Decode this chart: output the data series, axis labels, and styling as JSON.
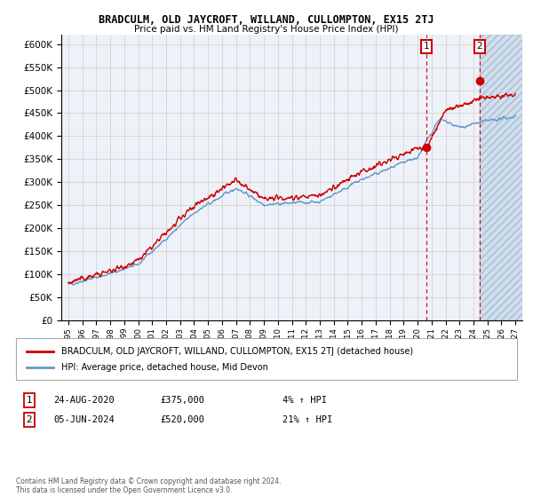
{
  "title": "BRADCULM, OLD JAYCROFT, WILLAND, CULLOMPTON, EX15 2TJ",
  "subtitle": "Price paid vs. HM Land Registry's House Price Index (HPI)",
  "legend_line1": "BRADCULM, OLD JAYCROFT, WILLAND, CULLOMPTON, EX15 2TJ (detached house)",
  "legend_line2": "HPI: Average price, detached house, Mid Devon",
  "annotation1_date": "24-AUG-2020",
  "annotation1_price": "£375,000",
  "annotation1_hpi": "4% ↑ HPI",
  "annotation1_year": 2020.65,
  "annotation1_value": 375000,
  "annotation2_date": "05-JUN-2024",
  "annotation2_price": "£520,000",
  "annotation2_hpi": "21% ↑ HPI",
  "annotation2_year": 2024.43,
  "annotation2_value": 520000,
  "ylim": [
    0,
    620000
  ],
  "yticks": [
    0,
    50000,
    100000,
    150000,
    200000,
    250000,
    300000,
    350000,
    400000,
    450000,
    500000,
    550000,
    600000
  ],
  "xlim_start": 1994.5,
  "xlim_end": 2027.5,
  "hatch_start": 2024.43,
  "hatch_end": 2027.5,
  "grid_color": "#cccccc",
  "background_color": "#ffffff",
  "plot_bg_color": "#eef2f8",
  "blue_fill_color": "#d0dff0",
  "red_color": "#cc0000",
  "blue_color": "#6699cc",
  "vline_color": "#cc0000",
  "footer": "Contains HM Land Registry data © Crown copyright and database right 2024.\nThis data is licensed under the Open Government Licence v3.0."
}
